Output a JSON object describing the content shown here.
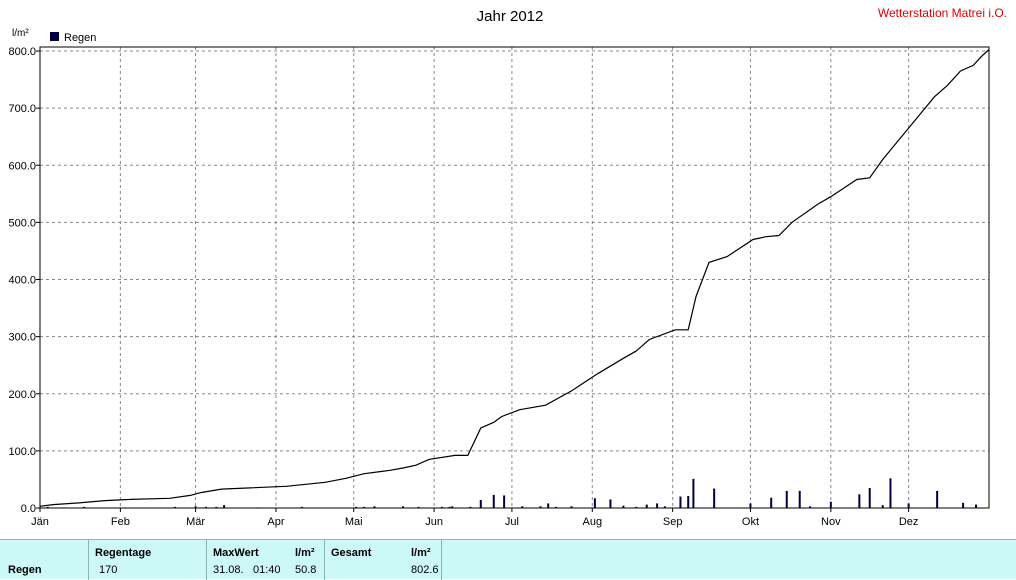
{
  "header": {
    "title": "Jahr 2012",
    "station": "Wetterstation Matrei i.O."
  },
  "chart_data": {
    "type": "bar+line",
    "title": "Jahr 2012",
    "ylabel": "l/m²",
    "ylim": [
      0,
      800
    ],
    "yticks": [
      "0.0",
      "100.0",
      "200.0",
      "300.0",
      "400.0",
      "500.0",
      "600.0",
      "700.0",
      "800.0"
    ],
    "xticks": [
      "Jän",
      "Feb",
      "Mär",
      "Apr",
      "Mai",
      "Jun",
      "Jul",
      "Aug",
      "Sep",
      "Okt",
      "Nov",
      "Dez"
    ],
    "x_domain": [
      0,
      366
    ],
    "legend": "Regen",
    "legend_position": "top-left",
    "grid": true,
    "bar_color": "#000040",
    "line_color": "#000000",
    "daily_rain": {
      "day": [
        3,
        9,
        17,
        33,
        52,
        60,
        64,
        68,
        71,
        84,
        101,
        122,
        125,
        129,
        140,
        146,
        155,
        158,
        159,
        166,
        170,
        175,
        179,
        186,
        193,
        196,
        199,
        205,
        214,
        220,
        225,
        230,
        234,
        238,
        241,
        247,
        250,
        252,
        260,
        274,
        282,
        288,
        293,
        297,
        305,
        316,
        320,
        325,
        328,
        335,
        346,
        356,
        361
      ],
      "mm": [
        2,
        1,
        2,
        1,
        2,
        3,
        2,
        2,
        5,
        1,
        2,
        2,
        2,
        3,
        3,
        2,
        2,
        2,
        3,
        2,
        14,
        23,
        22,
        3,
        3,
        8,
        2,
        3,
        17,
        15,
        4,
        2,
        6,
        8,
        3,
        20,
        21,
        51,
        34,
        8,
        18,
        30,
        30,
        3,
        11,
        24,
        35,
        5,
        52,
        8,
        30,
        9,
        6
      ]
    },
    "cumulative": {
      "day": [
        0,
        5,
        15,
        25,
        35,
        50,
        58,
        62,
        70,
        80,
        95,
        110,
        118,
        125,
        135,
        140,
        145,
        150,
        160,
        165,
        170,
        175,
        178,
        185,
        195,
        205,
        215,
        225,
        230,
        235,
        245,
        250,
        253,
        258,
        265,
        275,
        280,
        285,
        290,
        300,
        305,
        315,
        320,
        325,
        335,
        345,
        350,
        355,
        360,
        363,
        366
      ],
      "value": [
        3,
        6,
        9,
        13,
        15,
        17,
        22,
        27,
        33,
        35,
        38,
        45,
        52,
        60,
        66,
        70,
        75,
        85,
        92,
        92,
        140,
        150,
        160,
        172,
        180,
        205,
        235,
        262,
        275,
        295,
        312,
        312,
        370,
        430,
        440,
        470,
        475,
        477,
        500,
        532,
        545,
        575,
        578,
        610,
        665,
        720,
        740,
        765,
        775,
        790,
        802.6
      ]
    }
  },
  "summary": {
    "row_label": "Regen",
    "regentage_label": "Regentage",
    "regentage_value": "170",
    "maxwert_label": "MaxWert",
    "maxwert_unit": "l/m²",
    "maxwert_date": "31.08.",
    "maxwert_time": "01:40",
    "maxwert_value": "50.8",
    "gesamt_label": "Gesamt",
    "gesamt_unit": "l/m²",
    "gesamt_value": "802.6"
  }
}
